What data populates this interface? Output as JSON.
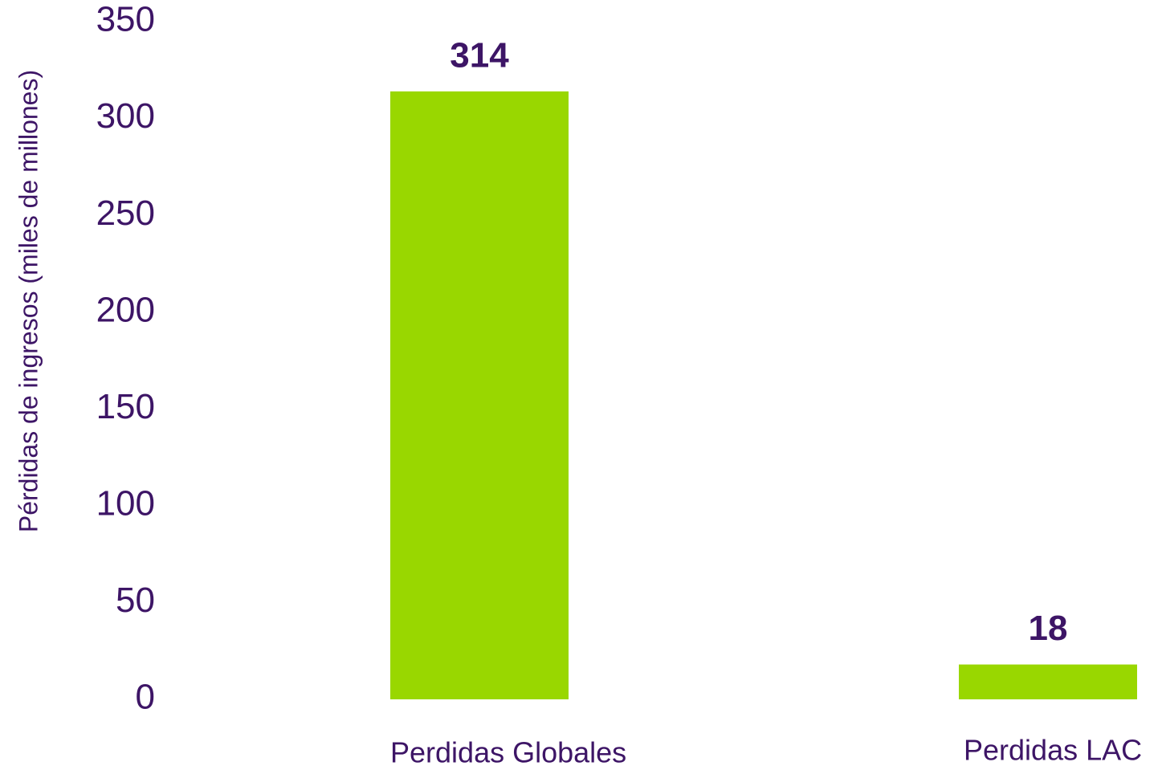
{
  "chart_data": {
    "type": "bar",
    "y_axis_label": "Pérdidas de ingresos (miles de millones)",
    "categories": [
      "Perdidas Globales",
      "Perdidas LAC"
    ],
    "values": [
      314,
      18
    ],
    "color": "#99d700",
    "ylim": [
      0,
      350
    ],
    "yticks": [
      0,
      50,
      100,
      150,
      200,
      250,
      300,
      350
    ],
    "grid": false
  }
}
